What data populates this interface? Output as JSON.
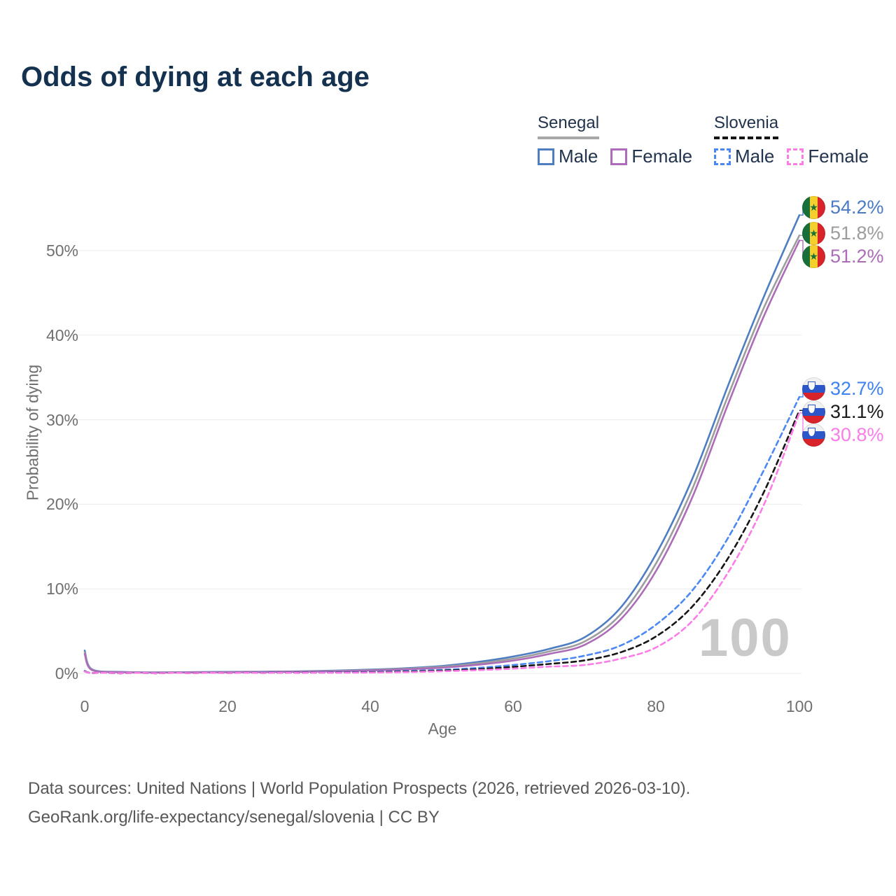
{
  "title": "Odds of dying at each age",
  "legend": {
    "groups": [
      {
        "country": "Senegal",
        "items": [
          {
            "label": "Male"
          },
          {
            "label": "Female"
          }
        ]
      },
      {
        "country": "Slovenia",
        "items": [
          {
            "label": "Male"
          },
          {
            "label": "Female"
          }
        ]
      }
    ]
  },
  "watermark_age": "100",
  "footer": {
    "line1": "Data sources: United Nations | World Population Prospects (2026, retrieved 2026-03-10).",
    "line2": "GeoRank.org/life-expectancy/senegal/slovenia | CC BY"
  },
  "chart_data": {
    "type": "line",
    "title": "Odds of dying at each age",
    "xlabel": "Age",
    "ylabel": "Probability of dying",
    "xlim": [
      0,
      100
    ],
    "ylim_pct": [
      0,
      55
    ],
    "grid": "horizontal",
    "legend_position": "top-right",
    "xticklabels": [
      "0",
      "20",
      "40",
      "60",
      "80",
      "100"
    ],
    "yticklabels": [
      "0%",
      "10%",
      "20%",
      "30%",
      "40%",
      "50%"
    ],
    "ages": [
      0,
      1,
      5,
      10,
      15,
      20,
      25,
      30,
      35,
      40,
      45,
      50,
      55,
      60,
      65,
      70,
      75,
      80,
      85,
      90,
      95,
      100
    ],
    "series": [
      {
        "id": "senegal-male",
        "name": "Senegal Male",
        "country": "Senegal",
        "sex": "Male",
        "style": "solid",
        "color": "#4e7ec1",
        "label_color": "#4a7bc4",
        "end_label": "54.2%",
        "flag_icon": "senegal-flag-icon",
        "values_pct": [
          2.7,
          0.5,
          0.18,
          0.12,
          0.15,
          0.18,
          0.21,
          0.25,
          0.32,
          0.45,
          0.62,
          0.88,
          1.35,
          2.0,
          2.9,
          4.3,
          7.8,
          14.2,
          23.0,
          34.0,
          44.5,
          54.2
        ]
      },
      {
        "id": "senegal-all",
        "name": "Senegal (all)",
        "country": "Senegal",
        "sex": "All",
        "style": "solid",
        "color": "#9d9d9d",
        "label_color": "#9d9d9d",
        "end_label": "51.8%",
        "flag_icon": "senegal-flag-icon",
        "values_pct": [
          2.5,
          0.45,
          0.16,
          0.11,
          0.13,
          0.16,
          0.18,
          0.22,
          0.28,
          0.4,
          0.55,
          0.78,
          1.18,
          1.75,
          2.6,
          3.8,
          7.0,
          13.1,
          21.8,
          32.8,
          43.2,
          51.8
        ]
      },
      {
        "id": "senegal-female",
        "name": "Senegal Female",
        "country": "Senegal",
        "sex": "Female",
        "style": "solid",
        "color": "#ad6cb8",
        "label_color": "#ad6cb8",
        "end_label": "51.2%",
        "flag_icon": "senegal-flag-icon",
        "values_pct": [
          2.3,
          0.4,
          0.15,
          0.1,
          0.12,
          0.14,
          0.16,
          0.19,
          0.25,
          0.35,
          0.48,
          0.68,
          1.02,
          1.52,
          2.3,
          3.4,
          6.4,
          12.2,
          20.8,
          31.8,
          42.2,
          51.2
        ]
      },
      {
        "id": "slovenia-male",
        "name": "Slovenia Male",
        "country": "Slovenia",
        "sex": "Male",
        "style": "dashed",
        "color": "#4c88f2",
        "label_color": "#3d82f0",
        "end_label": "32.7%",
        "flag_icon": "slovenia-flag-icon",
        "values_pct": [
          0.3,
          0.04,
          0.02,
          0.02,
          0.04,
          0.07,
          0.09,
          0.1,
          0.13,
          0.18,
          0.28,
          0.42,
          0.65,
          1.0,
          1.45,
          2.1,
          3.3,
          5.8,
          9.8,
          16.0,
          24.0,
          32.7
        ]
      },
      {
        "id": "slovenia-all",
        "name": "Slovenia (all)",
        "country": "Slovenia",
        "sex": "All",
        "style": "dashed",
        "color": "#161616",
        "label_color": "#1a1a1a",
        "end_label": "31.1%",
        "flag_icon": "slovenia-flag-icon",
        "values_pct": [
          0.25,
          0.03,
          0.01,
          0.01,
          0.03,
          0.05,
          0.06,
          0.08,
          0.1,
          0.14,
          0.21,
          0.33,
          0.5,
          0.78,
          1.12,
          1.55,
          2.5,
          4.4,
          7.9,
          13.6,
          21.4,
          31.1
        ]
      },
      {
        "id": "slovenia-female",
        "name": "Slovenia Female",
        "country": "Slovenia",
        "sex": "Female",
        "style": "dashed",
        "color": "#fb7de7",
        "label_color": "#fb7de7",
        "end_label": "30.8%",
        "flag_icon": "slovenia-flag-icon",
        "values_pct": [
          0.22,
          0.03,
          0.01,
          0.01,
          0.02,
          0.03,
          0.04,
          0.05,
          0.07,
          0.1,
          0.15,
          0.25,
          0.38,
          0.56,
          0.8,
          1.0,
          1.75,
          3.1,
          6.2,
          11.9,
          19.9,
          30.8
        ]
      }
    ]
  }
}
